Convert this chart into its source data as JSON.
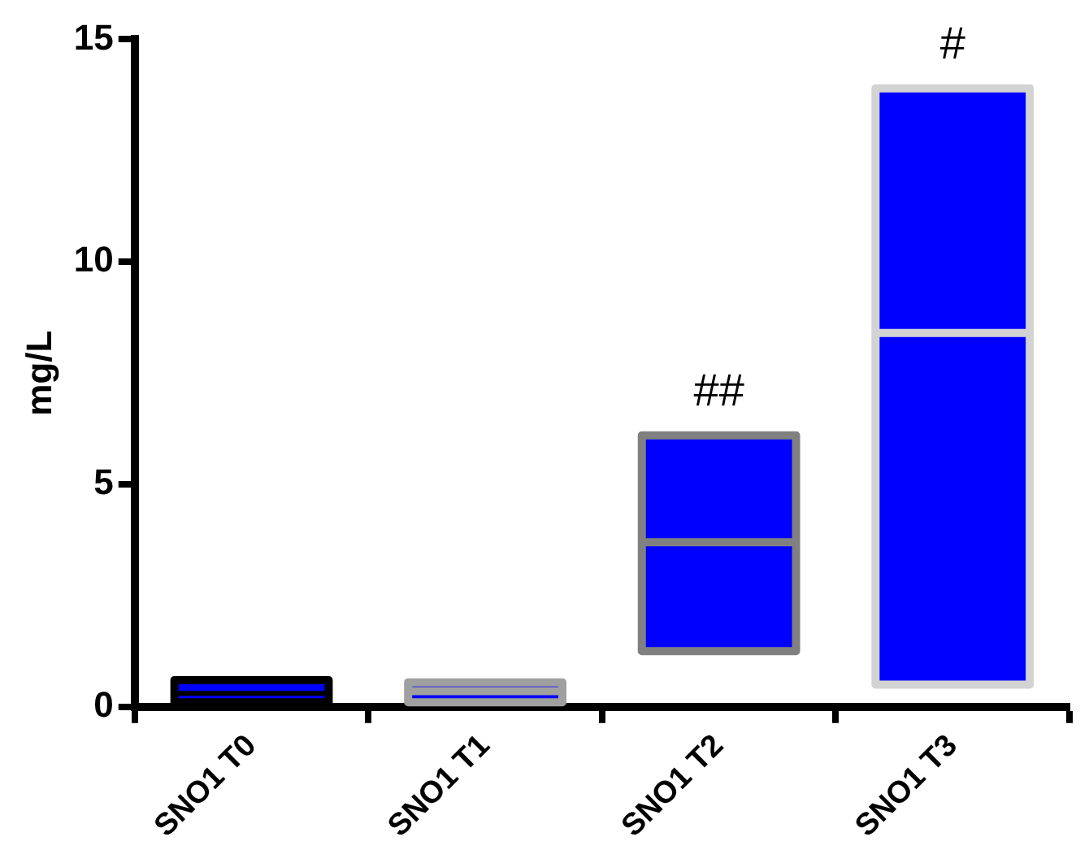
{
  "chart_data": {
    "type": "box",
    "ylabel": "mg/L",
    "categories": [
      "SNO1 T0",
      "SNO1 T1",
      "SNO1 T2",
      "SNO1 T3"
    ],
    "color": "#0000ff",
    "boxes": [
      {
        "low": 0.1,
        "q1": 0.1,
        "median": 0.3,
        "q3": 0.6,
        "high": 0.6
      },
      {
        "low": 0.1,
        "q1": 0.1,
        "median": 0.35,
        "q3": 0.55,
        "high": 0.55
      },
      {
        "low": 1.25,
        "q1": 1.25,
        "median": 3.7,
        "q3": 6.1,
        "high": 6.1
      },
      {
        "low": 0.5,
        "q1": 0.5,
        "median": 8.4,
        "q3": 13.9,
        "high": 13.9
      }
    ],
    "ylim": [
      0,
      15
    ],
    "yticks": [
      0,
      5,
      10,
      15
    ],
    "grid": false,
    "legend": false,
    "annotations": [
      "##",
      "#"
    ]
  }
}
